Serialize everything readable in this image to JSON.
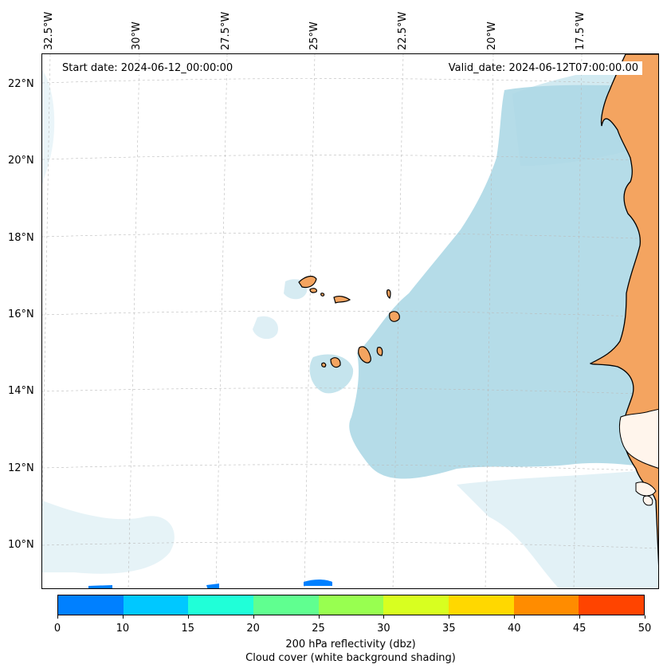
{
  "map": {
    "start_date": "Start date: 2024-06-12_00:00:00",
    "valid_date": "Valid_date: 2024-06-12T07:00:00.00",
    "lon_labels": [
      "32.5°W",
      "30°W",
      "27.5°W",
      "25°W",
      "22.5°W",
      "20°W",
      "17.5°W"
    ],
    "lat_labels": [
      "22°N",
      "20°N",
      "18°N",
      "16°N",
      "14°N",
      "12°N",
      "10°N"
    ],
    "land_color": "#f4a460",
    "cloud_color": "#add8e6",
    "coastline_color": "#000000",
    "gridlines": true
  },
  "colorbar": {
    "ticks": [
      "0",
      "10",
      "15",
      "20",
      "25",
      "30",
      "35",
      "40",
      "45",
      "50"
    ],
    "colors": [
      "#0080ff",
      "#00c8ff",
      "#20ffd8",
      "#60ff90",
      "#98ff50",
      "#d8ff20",
      "#ffd800",
      "#ff8c00",
      "#ff4400"
    ],
    "label": "200 hPa reflectivity (dbz)",
    "sublabel": "Cloud cover (white background shading)"
  }
}
